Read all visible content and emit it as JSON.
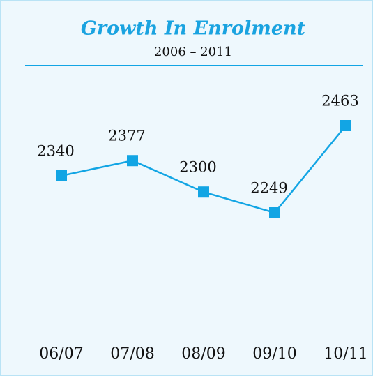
{
  "chart_data": {
    "type": "line",
    "title": "Growth In Enrolment",
    "subtitle": "2006 – 2011",
    "categories": [
      "06/07",
      "07/08",
      "08/09",
      "09/10",
      "10/11"
    ],
    "series": [
      {
        "name": null,
        "color": "#12a5e4",
        "values": [
          2340,
          2377,
          2300,
          2249,
          2463
        ]
      }
    ]
  }
}
